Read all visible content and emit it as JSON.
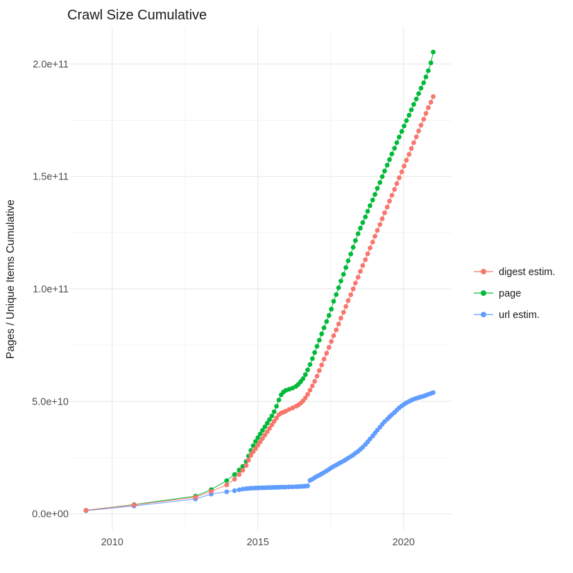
{
  "title": "Crawl Size Cumulative",
  "colors": {
    "digest": "#F8766D",
    "page": "#00BA38",
    "url": "#619CFF",
    "grid_major": "#E7E7E7",
    "grid_minor": "#F1F1F1",
    "tick_text": "#4d4d4d",
    "title_text": "#1a1a1a",
    "background": "#ffffff"
  },
  "chart_data": {
    "type": "scatter",
    "subtype": "points-with-line",
    "title": "Crawl Size Cumulative",
    "xlabel": "",
    "ylabel": "Pages / Unique Items Cumulative",
    "legend_position": "right",
    "grid": "major+minor",
    "x_ticks": [
      2010,
      2015,
      2020
    ],
    "x_tick_labels": [
      "2010",
      "2015",
      "2020"
    ],
    "y_unit_multiplier": 1000000000,
    "y_ticks_billions": [
      0,
      50,
      100,
      150,
      200
    ],
    "y_tick_labels": [
      "0.0e+00",
      "5.0e+10",
      "1.0e+11",
      "1.5e+11",
      "2.0e+11"
    ],
    "xlim": [
      2008.53,
      2021.65
    ],
    "ylim_billions": [
      -7.5,
      216.1
    ],
    "x": [
      2009.1,
      2010.75,
      2012.86,
      2013.4,
      2013.93,
      2014.2,
      2014.36,
      2014.48,
      2014.6,
      2014.68,
      2014.76,
      2014.84,
      2014.92,
      2015.0,
      2015.08,
      2015.16,
      2015.24,
      2015.32,
      2015.4,
      2015.48,
      2015.56,
      2015.64,
      2015.72,
      2015.8,
      2015.88,
      2015.96,
      2016.07,
      2016.19,
      2016.31,
      2016.39,
      2016.47,
      2016.55,
      2016.63,
      2016.71,
      2016.79,
      2016.87,
      2016.95,
      2017.03,
      2017.11,
      2017.19,
      2017.27,
      2017.36,
      2017.44,
      2017.52,
      2017.6,
      2017.69,
      2017.77,
      2017.85,
      2017.94,
      2018.02,
      2018.1,
      2018.19,
      2018.27,
      2018.35,
      2018.44,
      2018.52,
      2018.6,
      2018.69,
      2018.77,
      2018.85,
      2018.94,
      2019.02,
      2019.1,
      2019.19,
      2019.27,
      2019.35,
      2019.44,
      2019.52,
      2019.6,
      2019.69,
      2019.77,
      2019.85,
      2019.94,
      2020.02,
      2020.1,
      2020.19,
      2020.27,
      2020.35,
      2020.44,
      2020.52,
      2020.6,
      2020.69,
      2020.77,
      2020.85,
      2020.94,
      2021.02
    ],
    "series": [
      {
        "name": "digest estim.",
        "color": "#F8766D",
        "values_billions": [
          1.6,
          4.0,
          7.4,
          10.0,
          12.9,
          15.4,
          17.5,
          19.4,
          21.5,
          23.9,
          26.0,
          27.6,
          29.0,
          30.5,
          32.0,
          33.5,
          35.0,
          36.5,
          38.0,
          39.6,
          41.1,
          42.6,
          44.1,
          44.8,
          45.2,
          45.7,
          46.4,
          47.1,
          47.8,
          48.4,
          49.2,
          50.2,
          51.5,
          53.1,
          55.0,
          56.9,
          58.9,
          61.2,
          63.7,
          66.2,
          68.8,
          71.4,
          74.0,
          76.6,
          79.2,
          81.8,
          84.4,
          87.0,
          89.6,
          92.2,
          94.8,
          97.4,
          100.0,
          102.6,
          105.2,
          107.8,
          110.4,
          113.0,
          115.6,
          118.2,
          120.8,
          123.4,
          126.0,
          128.6,
          131.2,
          133.8,
          136.4,
          139.0,
          141.6,
          144.2,
          146.8,
          149.4,
          152.0,
          154.6,
          157.2,
          159.8,
          162.4,
          165.0,
          167.6,
          170.2,
          172.8,
          175.4,
          178.0,
          180.6,
          183.0,
          185.5
        ]
      },
      {
        "name": "page",
        "color": "#00BA38",
        "values_billions": [
          1.6,
          4.1,
          7.9,
          10.8,
          14.8,
          17.5,
          19.5,
          21.1,
          23.3,
          25.7,
          28.2,
          30.3,
          32.2,
          33.9,
          35.5,
          37.1,
          38.7,
          40.3,
          41.9,
          43.5,
          45.4,
          47.8,
          50.6,
          52.9,
          54.2,
          54.9,
          55.4,
          55.9,
          56.7,
          57.6,
          58.8,
          60.1,
          61.9,
          64.0,
          66.4,
          69.0,
          71.7,
          74.5,
          77.2,
          80.0,
          82.7,
          85.5,
          88.2,
          91.0,
          94.5,
          97.5,
          100.5,
          103.5,
          106.5,
          109.5,
          112.5,
          115.5,
          118.5,
          121.5,
          124.5,
          127.0,
          129.5,
          132.0,
          134.5,
          137.0,
          139.5,
          142.0,
          144.7,
          147.3,
          149.9,
          152.4,
          155.0,
          157.5,
          160.0,
          162.5,
          165.0,
          167.5,
          170.0,
          172.4,
          174.8,
          177.2,
          179.6,
          182.0,
          184.4,
          186.8,
          189.2,
          191.6,
          194.2,
          197.0,
          200.5,
          205.3
        ]
      },
      {
        "name": "url estim.",
        "color": "#619CFF",
        "values_billions": [
          1.4,
          3.5,
          6.6,
          8.8,
          9.8,
          10.3,
          10.7,
          11.0,
          11.2,
          11.3,
          11.4,
          11.4,
          11.5,
          11.5,
          11.6,
          11.6,
          11.6,
          11.7,
          11.7,
          11.7,
          11.8,
          11.8,
          11.8,
          11.9,
          11.9,
          11.9,
          12.0,
          12.0,
          12.1,
          12.1,
          12.2,
          12.2,
          12.3,
          12.4,
          14.9,
          15.4,
          16.1,
          16.7,
          17.2,
          17.8,
          18.4,
          19.1,
          19.8,
          20.5,
          21.1,
          21.7,
          22.3,
          22.9,
          23.5,
          24.1,
          24.8,
          25.5,
          26.2,
          27.0,
          27.8,
          28.7,
          29.6,
          30.8,
          32.0,
          33.3,
          34.6,
          35.9,
          37.2,
          38.5,
          39.8,
          41.0,
          42.1,
          43.1,
          44.1,
          45.1,
          46.1,
          47.1,
          48.0,
          48.7,
          49.4,
          50.0,
          50.5,
          51.0,
          51.4,
          51.7,
          52.0,
          52.3,
          52.7,
          53.1,
          53.5,
          53.9
        ]
      }
    ]
  }
}
